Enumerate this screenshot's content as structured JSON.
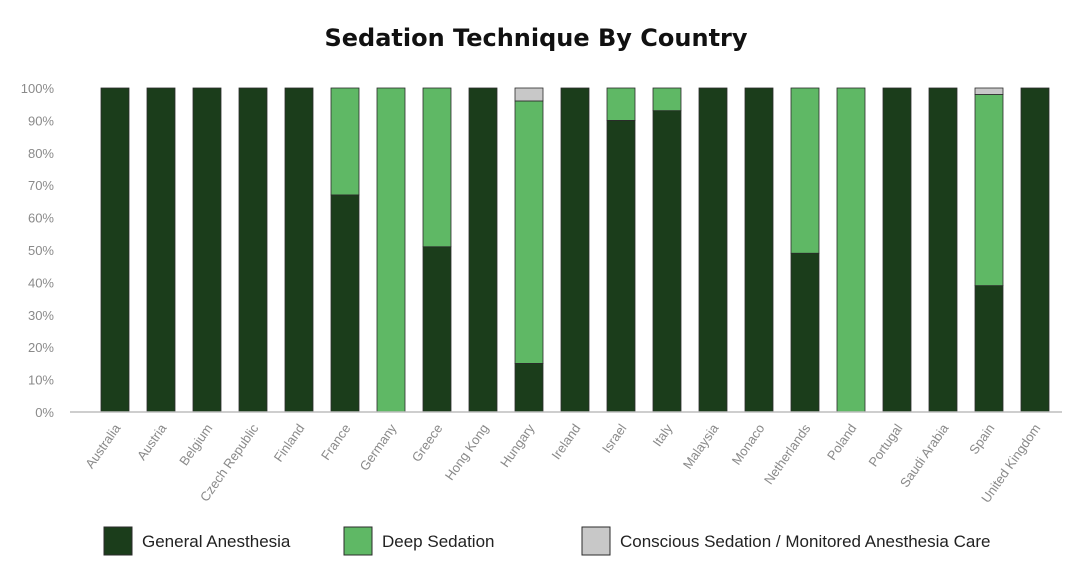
{
  "chart_data": {
    "type": "bar",
    "stacked": true,
    "title": "Sedation Technique By Country",
    "xlabel": "",
    "ylabel": "",
    "ylim": [
      0,
      100
    ],
    "yticks": [
      "0%",
      "10%",
      "20%",
      "30%",
      "40%",
      "50%",
      "60%",
      "70%",
      "80%",
      "90%",
      "100%"
    ],
    "categories": [
      "Australia",
      "Austria",
      "Belgium",
      "Czech Republic",
      "Finland",
      "France",
      "Germany",
      "Greece",
      "Hong Kong",
      "Hungary",
      "Ireland",
      "Israel",
      "Italy",
      "Malaysia",
      "Monaco",
      "Netherlands",
      "Poland",
      "Portugal",
      "Saudi Arabia",
      "Spain",
      "United Kingdom"
    ],
    "series": [
      {
        "name": "General Anesthesia",
        "color": "#1b3d1b",
        "values": [
          100,
          100,
          100,
          100,
          100,
          67,
          0,
          51,
          100,
          15,
          100,
          90,
          93,
          100,
          100,
          49,
          0,
          100,
          100,
          39,
          100
        ]
      },
      {
        "name": "Deep Sedation",
        "color": "#5fb865",
        "values": [
          0,
          0,
          0,
          0,
          0,
          33,
          100,
          49,
          0,
          81,
          0,
          10,
          7,
          0,
          0,
          51,
          100,
          0,
          0,
          59,
          0
        ]
      },
      {
        "name": "Conscious Sedation / Monitored Anesthesia Care",
        "color": "#c8c8c8",
        "values": [
          0,
          0,
          0,
          0,
          0,
          0,
          0,
          0,
          0,
          4,
          0,
          0,
          0,
          0,
          0,
          0,
          0,
          0,
          0,
          2,
          0
        ]
      }
    ],
    "grid": false,
    "legend": "bottom"
  }
}
